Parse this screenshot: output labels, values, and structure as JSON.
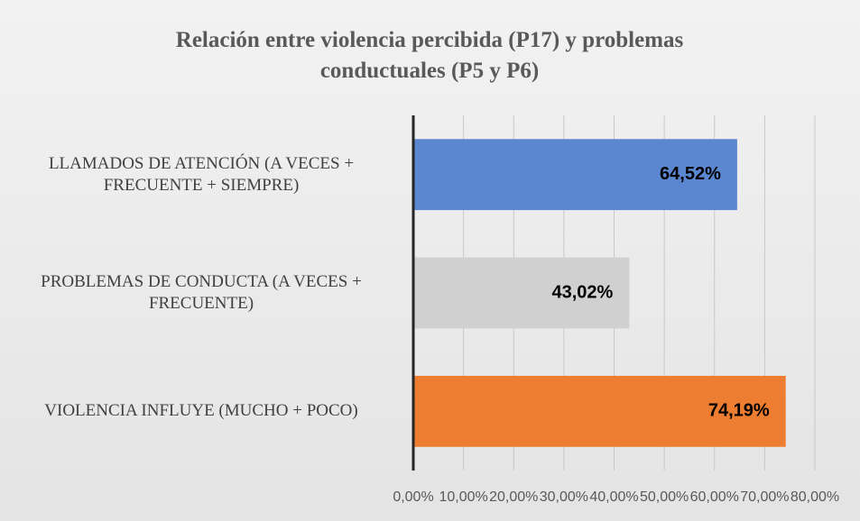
{
  "chart_data": {
    "type": "bar",
    "orientation": "horizontal",
    "title": "Relación entre violencia percibida (P17) y problemas conductuales (P5 y P6)",
    "categories": [
      "LLAMADOS DE ATENCIÓN (A VECES + FRECUENTE + SIEMPRE)",
      "PROBLEMAS DE CONDUCTA (A VECES + FRECUENTE)",
      "VIOLENCIA INFLUYE (MUCHO + POCO)"
    ],
    "values": [
      64.52,
      43.02,
      74.19
    ],
    "value_labels": [
      "64,52%",
      "43,02%",
      "74,19%"
    ],
    "colors": [
      "#5b87d1",
      "#d0d0d0",
      "#ed7d31"
    ],
    "xlim": [
      0,
      80
    ],
    "xticks": [
      {
        "value": 0,
        "label": "0,00%"
      },
      {
        "value": 10,
        "label": "10,00%"
      },
      {
        "value": 20,
        "label": "20,00%"
      },
      {
        "value": 30,
        "label": "30,00%"
      },
      {
        "value": 40,
        "label": "40,00%"
      },
      {
        "value": 50,
        "label": "50,00%"
      },
      {
        "value": 60,
        "label": "60,00%"
      },
      {
        "value": 70,
        "label": "70,00%"
      },
      {
        "value": 80,
        "label": "80,00%"
      }
    ],
    "grid": true
  }
}
